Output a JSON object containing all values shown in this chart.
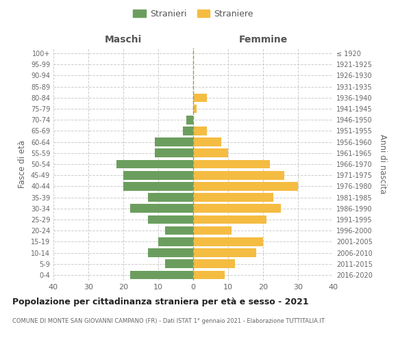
{
  "age_groups_bottom_to_top": [
    "0-4",
    "5-9",
    "10-14",
    "15-19",
    "20-24",
    "25-29",
    "30-34",
    "35-39",
    "40-44",
    "45-49",
    "50-54",
    "55-59",
    "60-64",
    "65-69",
    "70-74",
    "75-79",
    "80-84",
    "85-89",
    "90-94",
    "95-99",
    "100+"
  ],
  "birth_years_bottom_to_top": [
    "2016-2020",
    "2011-2015",
    "2006-2010",
    "2001-2005",
    "1996-2000",
    "1991-1995",
    "1986-1990",
    "1981-1985",
    "1976-1980",
    "1971-1975",
    "1966-1970",
    "1961-1965",
    "1956-1960",
    "1951-1955",
    "1946-1950",
    "1941-1945",
    "1936-1940",
    "1931-1935",
    "1926-1930",
    "1921-1925",
    "≤ 1920"
  ],
  "maschi_bottom_to_top": [
    18,
    8,
    13,
    10,
    8,
    13,
    18,
    13,
    20,
    20,
    22,
    11,
    11,
    3,
    2,
    0,
    0,
    0,
    0,
    0,
    0
  ],
  "femmine_bottom_to_top": [
    9,
    12,
    18,
    20,
    11,
    21,
    25,
    23,
    30,
    26,
    22,
    10,
    8,
    4,
    0,
    1,
    4,
    0,
    0,
    0,
    0
  ],
  "male_color": "#6b9e5e",
  "female_color": "#f5bc42",
  "xlim": 40,
  "title": "Popolazione per cittadinanza straniera per età e sesso - 2021",
  "subtitle": "COMUNE DI MONTE SAN GIOVANNI CAMPANO (FR) - Dati ISTAT 1° gennaio 2021 - Elaborazione TUTTITALIA.IT",
  "ylabel_left": "Fasce di età",
  "ylabel_right": "Anni di nascita",
  "xlabel_left": "Maschi",
  "xlabel_right": "Femmine",
  "legend_maschi": "Stranieri",
  "legend_femmine": "Straniere",
  "background_color": "#ffffff",
  "grid_color": "#cccccc"
}
